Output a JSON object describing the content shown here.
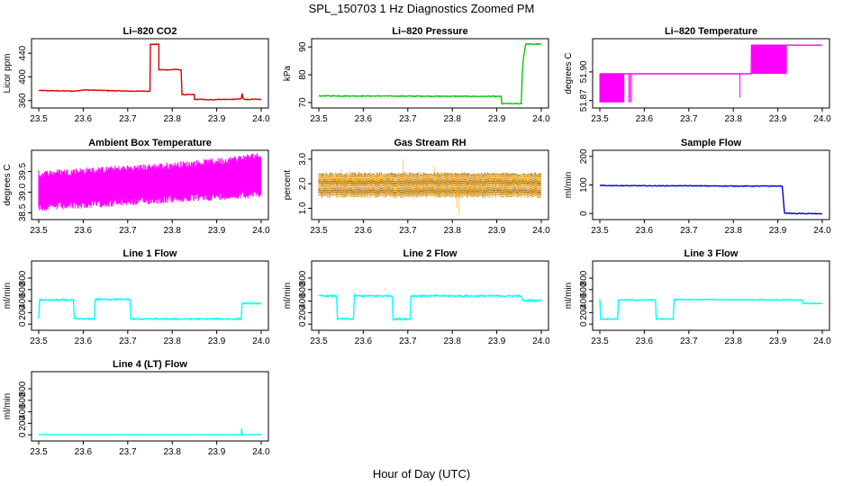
{
  "figure": {
    "title": "SPL_150703  1 Hz Diagnostics Zoomed PM",
    "xlabel": "Hour of Day (UTC)"
  },
  "chart_data": [
    {
      "type": "line",
      "title": "Li–820 CO2",
      "ylabel": "Licor ppm",
      "color": "#e00000",
      "xlim": [
        23.5,
        24.0
      ],
      "ylim": [
        352,
        460
      ],
      "xticks": [
        "23.5",
        "23.6",
        "23.7",
        "23.8",
        "23.9",
        "24.0"
      ],
      "yticks": [
        {
          "v": 360,
          "label": "360"
        },
        {
          "v": 400,
          "label": "400"
        },
        {
          "v": 440,
          "label": "440"
        }
      ],
      "series": [
        {
          "name": "CO2",
          "x": [
            23.5,
            23.58,
            23.6,
            23.65,
            23.7,
            23.75,
            23.751,
            23.755,
            23.77,
            23.77,
            23.785,
            23.8,
            23.802,
            23.815,
            23.82,
            23.822,
            23.84,
            23.85,
            23.85,
            23.87,
            23.88,
            23.9,
            23.92,
            23.94,
            23.955,
            23.957,
            23.959,
            23.962,
            23.964,
            23.98,
            24.0
          ],
          "y": [
            377,
            376,
            378,
            377,
            376,
            376,
            455,
            455,
            455,
            412,
            412,
            412,
            413,
            412,
            412,
            370,
            370,
            370,
            362,
            362,
            361,
            362,
            362,
            362,
            363,
            372,
            364,
            362,
            362,
            362,
            362
          ]
        }
      ],
      "noise": 0.6
    },
    {
      "type": "line",
      "title": "Li–820 Pressure",
      "ylabel": "kPa",
      "color": "#00cc00",
      "xlim": [
        23.5,
        24.0
      ],
      "ylim": [
        69,
        92
      ],
      "xticks": [
        "23.5",
        "23.6",
        "23.7",
        "23.8",
        "23.9",
        "24.0"
      ],
      "yticks": [
        {
          "v": 70,
          "label": "70"
        },
        {
          "v": 80,
          "label": "80"
        },
        {
          "v": 90,
          "label": "90"
        }
      ],
      "series": [
        {
          "name": "Pressure",
          "x": [
            23.5,
            23.7,
            23.9,
            23.91,
            23.911,
            23.955,
            23.957,
            23.96,
            23.965,
            23.97,
            24.0
          ],
          "y": [
            72.4,
            72.3,
            72.2,
            72.2,
            69.6,
            69.6,
            80,
            86,
            91,
            91,
            91
          ]
        }
      ],
      "noise": 0.15
    },
    {
      "type": "line",
      "title": "Li–820 Temperature",
      "ylabel": "degrees C",
      "color": "#ff00ff",
      "xlim": [
        23.5,
        24.0
      ],
      "ylim": [
        51.865,
        51.932
      ],
      "xticks": [
        "23.5",
        "23.6",
        "23.7",
        "23.8",
        "23.9",
        "24.0"
      ],
      "yticks": [
        {
          "v": 51.87,
          "label": "51.87"
        },
        {
          "v": 51.9,
          "label": "51.90"
        }
      ],
      "series": [
        {
          "name": "Temperature",
          "x": [
            23.5,
            23.84,
            23.841,
            23.92,
            23.921,
            24.0
          ],
          "y": [
            51.898,
            51.898,
            51.928,
            51.928,
            51.928,
            51.928
          ]
        }
      ],
      "spikes": [
        {
          "from": 23.5,
          "to": 23.555,
          "step": 0.0015,
          "base": 51.898,
          "to_val": 51.868
        },
        {
          "from": 23.565,
          "to": 23.571,
          "step": 0.003,
          "base": 51.898,
          "to_val": 51.868
        },
        {
          "from": 23.815,
          "to": 23.816,
          "step": 0.001,
          "base": 51.898,
          "to_val": 51.873
        },
        {
          "from": 23.843,
          "to": 23.92,
          "step": 0.0015,
          "base": 51.928,
          "to_val": 51.898
        }
      ],
      "noise": 0
    },
    {
      "type": "line",
      "title": "Ambient Box Temperature",
      "ylabel": "degrees C",
      "color": "#ff00ff",
      "xlim": [
        23.5,
        24.0
      ],
      "ylim": [
        38.4,
        39.95
      ],
      "xticks": [
        "23.5",
        "23.6",
        "23.7",
        "23.8",
        "23.9",
        "24.0"
      ],
      "yticks": [
        {
          "v": 38.5,
          "label": "38.5"
        },
        {
          "v": 39.0,
          "label": "39.0"
        },
        {
          "v": 39.5,
          "label": "39.5"
        }
      ],
      "band": {
        "lo": [
          38.72,
          38.78,
          38.85,
          38.92,
          38.98,
          39.05
        ],
        "hi": [
          39.35,
          39.42,
          39.48,
          39.55,
          39.65,
          39.8
        ],
        "step": 0.0012,
        "jitter": 0.18
      },
      "series": []
    },
    {
      "type": "scatter",
      "title": "Gas Stream RH",
      "ylabel": "percent",
      "color": "#ffa500",
      "color2": "#555555",
      "xlim": [
        23.5,
        24.0
      ],
      "ylim": [
        0.65,
        3.25
      ],
      "xticks": [
        "23.5",
        "23.6",
        "23.7",
        "23.8",
        "23.9",
        "24.0"
      ],
      "yticks": [
        {
          "v": 1.0,
          "label": "1.0"
        },
        {
          "v": 2.0,
          "label": "2.0"
        },
        {
          "v": 3.0,
          "label": "3.0"
        }
      ],
      "band": {
        "lo": [
          1.55,
          1.55,
          1.55,
          1.55,
          1.55,
          1.55
        ],
        "hi": [
          2.35,
          2.35,
          2.35,
          2.35,
          2.35,
          2.35
        ],
        "step": 0.0018,
        "jitter": 0.12
      },
      "outliers": [
        {
          "x": 23.69,
          "y": 3.0
        },
        {
          "x": 23.815,
          "y": 0.75
        },
        {
          "x": 23.55,
          "y": 2.6
        },
        {
          "x": 23.76,
          "y": 2.7
        },
        {
          "x": 23.81,
          "y": 1.0
        }
      ],
      "series": []
    },
    {
      "type": "line",
      "title": "Sample Flow",
      "ylabel": "ml/min",
      "color": "#0000dd",
      "xlim": [
        23.5,
        24.0
      ],
      "ylim": [
        -12,
        212
      ],
      "xticks": [
        "23.5",
        "23.6",
        "23.7",
        "23.8",
        "23.9",
        "24.0"
      ],
      "yticks": [
        {
          "v": 0,
          "label": "0"
        },
        {
          "v": 100,
          "label": "100"
        },
        {
          "v": 200,
          "label": "200"
        }
      ],
      "series": [
        {
          "name": "Sample Flow",
          "x": [
            23.5,
            23.6,
            23.7,
            23.8,
            23.9,
            23.91,
            23.915,
            23.93,
            24.0
          ],
          "y": [
            98,
            97,
            97,
            96,
            96,
            96,
            2,
            0,
            -1
          ]
        }
      ],
      "noise": 1.2
    },
    {
      "type": "line",
      "title": "Line 1 Flow",
      "ylabel": "ml/min",
      "color": "#00ffff",
      "xlim": [
        23.5,
        24.0
      ],
      "ylim": [
        -60,
        1050
      ],
      "xticks": [
        "23.5",
        "23.6",
        "23.7",
        "23.8",
        "23.9",
        "24.0"
      ],
      "yticks": [
        {
          "v": 0,
          "label": "0"
        },
        {
          "v": 200,
          "label": "200"
        },
        {
          "v": 400,
          "label": "400"
        },
        {
          "v": 600,
          "label": "600"
        },
        {
          "v": 800,
          "label": "800"
        }
      ],
      "series": [
        {
          "name": "Line 1",
          "x": [
            23.5,
            23.502,
            23.505,
            23.578,
            23.58,
            23.625,
            23.627,
            23.705,
            23.707,
            23.955,
            23.957,
            24.0
          ],
          "y": [
            100,
            420,
            420,
            420,
            90,
            90,
            430,
            430,
            90,
            90,
            360,
            360
          ]
        }
      ],
      "noise": 12
    },
    {
      "type": "line",
      "title": "Line 2 Flow",
      "ylabel": "ml/min",
      "color": "#00ffff",
      "xlim": [
        23.5,
        24.0
      ],
      "ylim": [
        -60,
        1050
      ],
      "xticks": [
        "23.5",
        "23.6",
        "23.7",
        "23.8",
        "23.9",
        "24.0"
      ],
      "yticks": [
        {
          "v": 0,
          "label": "0"
        },
        {
          "v": 200,
          "label": "200"
        },
        {
          "v": 400,
          "label": "400"
        },
        {
          "v": 600,
          "label": "600"
        },
        {
          "v": 800,
          "label": "800"
        }
      ],
      "series": [
        {
          "name": "Line 2",
          "x": [
            23.5,
            23.54,
            23.542,
            23.578,
            23.58,
            23.665,
            23.667,
            23.705,
            23.707,
            23.955,
            23.957,
            24.0
          ],
          "y": [
            490,
            490,
            90,
            90,
            490,
            490,
            90,
            90,
            490,
            490,
            410,
            410
          ]
        }
      ],
      "noise": 14
    },
    {
      "type": "line",
      "title": "Line 3 Flow",
      "ylabel": "ml/min",
      "color": "#00ffff",
      "xlim": [
        23.5,
        24.0
      ],
      "ylim": [
        -60,
        1050
      ],
      "xticks": [
        "23.5",
        "23.6",
        "23.7",
        "23.8",
        "23.9",
        "24.0"
      ],
      "yticks": [
        {
          "v": 0,
          "label": "0"
        },
        {
          "v": 200,
          "label": "200"
        },
        {
          "v": 400,
          "label": "400"
        },
        {
          "v": 600,
          "label": "600"
        },
        {
          "v": 800,
          "label": "800"
        }
      ],
      "series": [
        {
          "name": "Line 3",
          "x": [
            23.5,
            23.502,
            23.54,
            23.542,
            23.625,
            23.627,
            23.665,
            23.667,
            23.955,
            23.957,
            24.0
          ],
          "y": [
            430,
            90,
            90,
            420,
            420,
            90,
            90,
            430,
            420,
            360,
            360
          ]
        }
      ],
      "noise": 8
    },
    {
      "type": "line",
      "title": "Line 4 (LT) Flow",
      "ylabel": "ml/min",
      "color": "#00ffff",
      "xlim": [
        23.5,
        24.0
      ],
      "ylim": [
        -60,
        1050
      ],
      "xticks": [
        "23.5",
        "23.6",
        "23.7",
        "23.8",
        "23.9",
        "24.0"
      ],
      "yticks": [
        {
          "v": 0,
          "label": "0"
        },
        {
          "v": 200,
          "label": "200"
        },
        {
          "v": 400,
          "label": "400"
        },
        {
          "v": 600,
          "label": "600"
        },
        {
          "v": 800,
          "label": "800"
        }
      ],
      "series": [
        {
          "name": "Line 4",
          "x": [
            23.5,
            23.955,
            23.956,
            23.957,
            24.0
          ],
          "y": [
            5,
            5,
            110,
            5,
            5
          ]
        }
      ],
      "noise": 1
    }
  ]
}
